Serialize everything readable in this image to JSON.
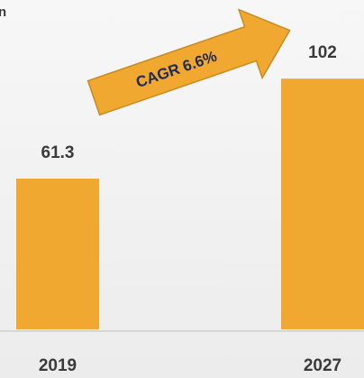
{
  "chart_data": {
    "type": "bar",
    "title": "n",
    "annotation": "CAGR 6.6%",
    "categories": [
      "2019",
      "2027"
    ],
    "values": [
      61.3,
      102
    ],
    "color": "#f0a830",
    "ylim": [
      0,
      134
    ]
  }
}
